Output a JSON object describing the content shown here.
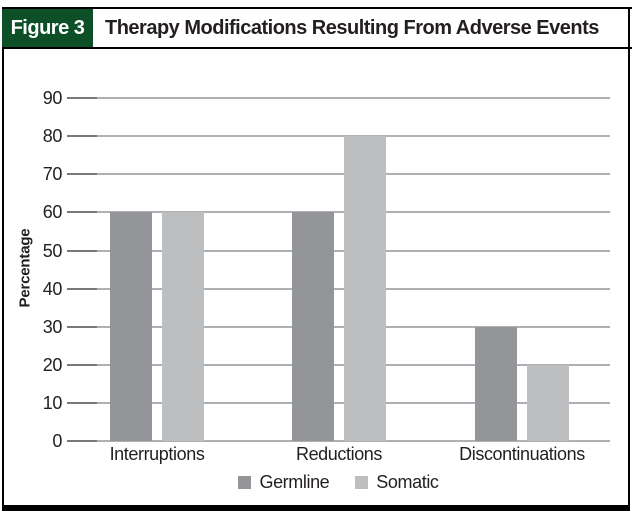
{
  "figure": {
    "label": "Figure 3",
    "title": "Therapy Modifications Resulting From Adverse Events"
  },
  "colors": {
    "header_green": "#0d4f27",
    "text": "#231f20",
    "border": "#000000",
    "germline_bar": "#939598",
    "somatic_bar": "#bcbec0",
    "gridline": "#aeb0b3",
    "tick": "#77787b",
    "background": "#ffffff"
  },
  "chart_data": {
    "type": "bar",
    "categories": [
      "Interruptions",
      "Reductions",
      "Discontinuations"
    ],
    "series": [
      {
        "name": "Germline",
        "values": [
          60,
          60,
          30
        ],
        "color": "#939598"
      },
      {
        "name": "Somatic",
        "values": [
          60,
          80,
          20
        ],
        "color": "#bcbec0"
      }
    ],
    "title": "Therapy Modifications Resulting From Adverse Events",
    "xlabel": "",
    "ylabel": "Percentage",
    "ylim": [
      0,
      90
    ],
    "yticks": [
      0,
      10,
      20,
      30,
      40,
      50,
      60,
      70,
      80,
      90
    ],
    "grid": true,
    "legend_position": "bottom"
  }
}
